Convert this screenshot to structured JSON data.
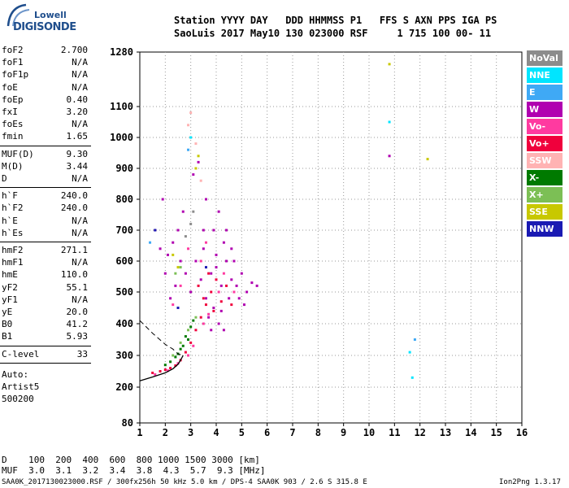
{
  "logo": {
    "line1": "Lowell",
    "line2": "DIGISONDE"
  },
  "header": {
    "row1": "Station YYYY DAY   DDD HHMMSS P1   FFS S AXN PPS IGA PS",
    "row2": "SaoLuis 2017 May10 130 023000 RSF     1 715 100 00- 11"
  },
  "params_group1": [
    {
      "key": "foF2",
      "value": "2.700"
    },
    {
      "key": "foF1",
      "value": "N/A"
    },
    {
      "key": "foF1p",
      "value": "N/A"
    },
    {
      "key": "foE",
      "value": "N/A"
    },
    {
      "key": "foEp",
      "value": "0.40"
    },
    {
      "key": "fxI",
      "value": "3.20"
    },
    {
      "key": "foEs",
      "value": "N/A"
    },
    {
      "key": "fmin",
      "value": "1.65"
    }
  ],
  "params_group2": [
    {
      "key": "MUF(D)",
      "value": "9.30"
    },
    {
      "key": "M(D)",
      "value": "3.44"
    },
    {
      "key": "D",
      "value": "N/A"
    }
  ],
  "params_group3": [
    {
      "key": "h`F",
      "value": "240.0"
    },
    {
      "key": "h`F2",
      "value": "240.0"
    },
    {
      "key": "h`E",
      "value": "N/A"
    },
    {
      "key": "h`Es",
      "value": "N/A"
    }
  ],
  "params_group4": [
    {
      "key": "hmF2",
      "value": "271.1"
    },
    {
      "key": "hmF1",
      "value": "N/A"
    },
    {
      "key": "hmE",
      "value": "110.0"
    },
    {
      "key": "yF2",
      "value": "55.1"
    },
    {
      "key": "yF1",
      "value": "N/A"
    },
    {
      "key": "yE",
      "value": "20.0"
    },
    {
      "key": "B0",
      "value": "41.2"
    },
    {
      "key": "B1",
      "value": "5.93"
    }
  ],
  "params_group5": [
    {
      "key": "C-level",
      "value": "33"
    }
  ],
  "autoscale": {
    "line1": "Auto:",
    "line2": "Artist5",
    "line3": "500200"
  },
  "legend": [
    {
      "label": "NoVal",
      "color": "#8c8c8c"
    },
    {
      "label": "NNE",
      "color": "#00e5ff"
    },
    {
      "label": "E",
      "color": "#3fa9f5"
    },
    {
      "label": "W",
      "color": "#b000b0"
    },
    {
      "label": "Vo-",
      "color": "#ff3aa0"
    },
    {
      "label": "Vo+",
      "color": "#f0003c"
    },
    {
      "label": "SSW",
      "color": "#ffb3b3"
    },
    {
      "label": "X-",
      "color": "#007a00"
    },
    {
      "label": "X+",
      "color": "#7cbf55"
    },
    {
      "label": "SSE",
      "color": "#c8c800"
    },
    {
      "label": "NNW",
      "color": "#1a1ab3"
    }
  ],
  "footer": {
    "d_row": "D    100  200  400  600  800 1000 1500 3000 [km]",
    "muf_row": "MUF  3.0  3.1  3.2  3.4  3.8  4.3  5.7  9.3 [MHz]",
    "info": "SAA0K_2017130023000.RSF / 300fx256h 50 kHz 5.0 km / DPS-4 SAA0K 903 / 2.6 S 315.8 E",
    "version": "Ion2Png 1.3.17"
  },
  "chart_data": {
    "type": "scatter",
    "xlabel": "",
    "ylabel": "",
    "xlim": [
      1,
      16
    ],
    "ylim": [
      80,
      1280
    ],
    "x_ticks": [
      1,
      2,
      3,
      4,
      5,
      6,
      7,
      8,
      9,
      10,
      11,
      12,
      13,
      14,
      15,
      16
    ],
    "y_ticks": [
      80,
      200,
      300,
      400,
      500,
      600,
      700,
      800,
      900,
      1000,
      1100,
      1280
    ],
    "grid": true,
    "series": [
      {
        "name": "W",
        "color": "#b000b0",
        "points": [
          [
            3.8,
            560
          ],
          [
            4.0,
            620
          ],
          [
            4.2,
            520
          ],
          [
            3.6,
            480
          ],
          [
            4.4,
            600
          ],
          [
            4.6,
            540
          ],
          [
            3.9,
            700
          ],
          [
            4.1,
            760
          ],
          [
            4.3,
            660
          ],
          [
            3.5,
            640
          ],
          [
            4.8,
            520
          ],
          [
            5.0,
            560
          ],
          [
            5.2,
            500
          ],
          [
            5.4,
            530
          ],
          [
            5.6,
            520
          ],
          [
            3.7,
            420
          ],
          [
            3.9,
            450
          ],
          [
            4.2,
            440
          ],
          [
            4.5,
            480
          ],
          [
            4.0,
            580
          ],
          [
            3.4,
            540
          ],
          [
            3.2,
            600
          ],
          [
            3.0,
            500
          ],
          [
            2.8,
            560
          ],
          [
            2.6,
            600
          ],
          [
            2.4,
            520
          ],
          [
            2.2,
            480
          ],
          [
            2.0,
            560
          ],
          [
            1.8,
            640
          ],
          [
            1.6,
            700
          ],
          [
            1.9,
            800
          ],
          [
            2.7,
            760
          ],
          [
            3.1,
            880
          ],
          [
            3.3,
            920
          ],
          [
            3.6,
            800
          ],
          [
            4.4,
            700
          ],
          [
            4.7,
            600
          ],
          [
            4.9,
            480
          ],
          [
            3.8,
            380
          ],
          [
            4.1,
            400
          ],
          [
            4.3,
            380
          ],
          [
            2.3,
            660
          ],
          [
            2.5,
            700
          ],
          [
            2.1,
            620
          ],
          [
            3.5,
            700
          ],
          [
            4.6,
            640
          ],
          [
            5.1,
            460
          ],
          [
            10.8,
            940
          ]
        ]
      },
      {
        "name": "Vo+",
        "color": "#f0003c",
        "points": [
          [
            1.5,
            245
          ],
          [
            1.8,
            250
          ],
          [
            2.0,
            255
          ],
          [
            2.2,
            260
          ],
          [
            2.4,
            268
          ],
          [
            2.6,
            285
          ],
          [
            2.8,
            310
          ],
          [
            3.0,
            340
          ],
          [
            3.2,
            380
          ],
          [
            3.4,
            420
          ],
          [
            3.6,
            460
          ],
          [
            3.8,
            500
          ],
          [
            4.0,
            540
          ],
          [
            4.2,
            470
          ],
          [
            3.9,
            440
          ],
          [
            4.4,
            520
          ],
          [
            3.5,
            480
          ],
          [
            4.6,
            460
          ],
          [
            3.3,
            520
          ],
          [
            3.7,
            560
          ]
        ]
      },
      {
        "name": "Vo-",
        "color": "#ff3aa0",
        "points": [
          [
            1.6,
            240
          ],
          [
            2.1,
            252
          ],
          [
            2.5,
            275
          ],
          [
            2.9,
            300
          ],
          [
            3.1,
            330
          ],
          [
            3.5,
            400
          ],
          [
            3.7,
            430
          ],
          [
            4.1,
            500
          ],
          [
            4.3,
            560
          ],
          [
            4.7,
            500
          ],
          [
            3.4,
            600
          ],
          [
            3.6,
            660
          ],
          [
            2.9,
            640
          ],
          [
            2.6,
            520
          ],
          [
            2.3,
            460
          ]
        ]
      },
      {
        "name": "X-",
        "color": "#007a00",
        "points": [
          [
            2.0,
            270
          ],
          [
            2.2,
            280
          ],
          [
            2.4,
            295
          ],
          [
            2.6,
            320
          ],
          [
            2.8,
            360
          ],
          [
            3.0,
            390
          ],
          [
            3.1,
            410
          ],
          [
            2.9,
            350
          ],
          [
            2.7,
            330
          ],
          [
            2.5,
            305
          ]
        ]
      },
      {
        "name": "X+",
        "color": "#7cbf55",
        "points": [
          [
            2.3,
            300
          ],
          [
            2.6,
            340
          ],
          [
            2.9,
            380
          ],
          [
            3.2,
            420
          ],
          [
            2.4,
            560
          ],
          [
            2.6,
            580
          ]
        ]
      },
      {
        "name": "SSE",
        "color": "#c8c800",
        "points": [
          [
            2.3,
            620
          ],
          [
            2.5,
            580
          ],
          [
            3.2,
            900
          ],
          [
            3.3,
            940
          ],
          [
            10.8,
            1240
          ],
          [
            12.3,
            930
          ]
        ]
      },
      {
        "name": "NNE",
        "color": "#00e5ff",
        "points": [
          [
            10.8,
            1050
          ],
          [
            11.6,
            310
          ],
          [
            11.7,
            230
          ],
          [
            3.0,
            1000
          ]
        ]
      },
      {
        "name": "E",
        "color": "#3fa9f5",
        "points": [
          [
            11.8,
            350
          ],
          [
            2.9,
            960
          ],
          [
            1.4,
            660
          ]
        ]
      },
      {
        "name": "SSW",
        "color": "#ffb3b3",
        "points": [
          [
            3.0,
            1080
          ],
          [
            2.9,
            1040
          ],
          [
            3.2,
            980
          ],
          [
            3.4,
            860
          ]
        ]
      },
      {
        "name": "NNW",
        "color": "#1a1ab3",
        "points": [
          [
            1.6,
            700
          ],
          [
            2.5,
            450
          ],
          [
            3.6,
            580
          ]
        ]
      },
      {
        "name": "NoVal",
        "color": "#8c8c8c",
        "points": [
          [
            3.0,
            720
          ],
          [
            3.1,
            760
          ],
          [
            2.8,
            680
          ]
        ]
      }
    ],
    "profile_solid": [
      [
        1.0,
        220
      ],
      [
        1.5,
        232
      ],
      [
        2.0,
        245
      ],
      [
        2.3,
        258
      ],
      [
        2.5,
        272
      ],
      [
        2.6,
        285
      ],
      [
        2.7,
        300
      ]
    ],
    "profile_dashed": [
      [
        1.0,
        410
      ],
      [
        1.5,
        370
      ],
      [
        2.0,
        335
      ],
      [
        2.3,
        320
      ],
      [
        2.5,
        305
      ],
      [
        2.7,
        300
      ]
    ]
  }
}
